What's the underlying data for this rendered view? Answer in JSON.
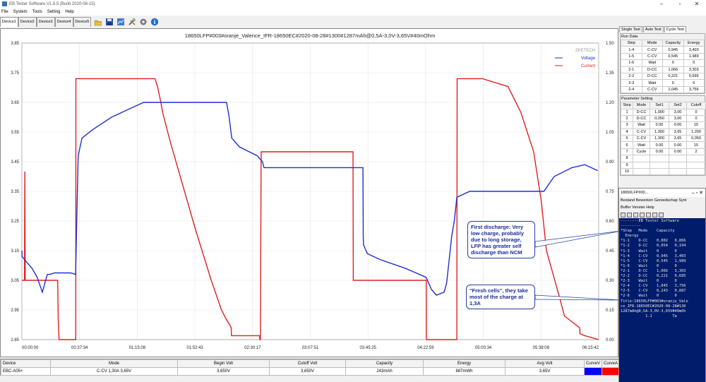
{
  "window": {
    "title": "EB Tester Software V1.8.5 (Build 2020-08-15)",
    "controls": [
      "–",
      "▫",
      "✕"
    ]
  },
  "menu": [
    "File",
    "System",
    "Tools",
    "Setting",
    "Help"
  ],
  "device_tabs": [
    "Device1",
    "Device2",
    "Device3",
    "Device4",
    "Device5"
  ],
  "toolbar_icons": [
    "open-folder-icon",
    "save-icon",
    "chart-export-icon",
    "tools-icon",
    "settings-icon",
    "info-icon"
  ],
  "chart": {
    "title": "18650LFP#003#oranje_Valence_IFR-18650EC#2020-08-28#1300#1287mAh@0,5A-3,0V-3,65V#40mOhm",
    "watermark": "ZKETECH",
    "legend_voltage": "Voltage",
    "legend_current": "Current",
    "voltage_color": "#1f2fd0",
    "current_color": "#e02020"
  },
  "chart_data": {
    "type": "line",
    "title": "18650LFP#003#oranje_Valence_IFR-18650EC#2020-08-28#1300#1287mAh@0,5A-3,0V-3,65V#40mOhm",
    "x_tick_labels": [
      "00:00:00",
      "00:37:34",
      "01:15:08",
      "01:52:43",
      "02:30:17",
      "03:07:51",
      "03:45:25",
      "04:22:59",
      "05:00:34",
      "05:38:08",
      "06:15:42"
    ],
    "x_range_seconds": [
      0,
      22542
    ],
    "y_left_ticks": [
      "3.85",
      "3.75",
      "3.65",
      "3.55",
      "3.45",
      "3.35",
      "3.25",
      "3.15",
      "3.05",
      "2.95",
      "2.85"
    ],
    "y_right_ticks": [
      "1.50",
      "1.35",
      "1.20",
      "1.05",
      "0.90",
      "0.75",
      "0.60",
      "0.45",
      "0.30",
      "0.15",
      "0.00"
    ],
    "ylim_voltage": [
      2.85,
      3.85
    ],
    "ylim_current": [
      0,
      1.5
    ],
    "grid": true,
    "legend_position": "top-right",
    "series": [
      {
        "name": "Voltage",
        "axis": "left",
        "x": [
          0,
          5,
          200,
          400,
          600,
          800,
          960,
          1000,
          1100,
          1280,
          1500,
          1900,
          2100,
          2200,
          2350,
          2800,
          3500,
          4000,
          4500,
          4760,
          4800,
          5500,
          6000,
          6800,
          7500,
          8000,
          8100,
          8200,
          8500,
          9200,
          9400,
          9460,
          9500,
          9700,
          10000,
          11000,
          12000,
          12800,
          13330,
          13340,
          13350,
          13500,
          14000,
          15000,
          15800,
          15900,
          16000,
          16200,
          16500,
          16600,
          16800,
          16900,
          17000,
          17500,
          18000,
          18500,
          19000,
          20000,
          20300,
          20400,
          20800,
          21500,
          22000,
          22500
        ],
        "y": [
          3.15,
          3.13,
          3.11,
          3.09,
          3.06,
          3.01,
          3.06,
          3.07,
          3.07,
          3.075,
          3.075,
          3.075,
          3.07,
          3.47,
          3.53,
          3.56,
          3.6,
          3.62,
          3.64,
          3.65,
          3.65,
          3.65,
          3.65,
          3.65,
          3.65,
          3.65,
          3.6,
          3.53,
          3.5,
          3.47,
          3.45,
          3.43,
          3.43,
          3.43,
          3.43,
          3.43,
          3.43,
          3.43,
          3.43,
          3.2,
          3.17,
          3.14,
          3.12,
          3.09,
          3.06,
          3.04,
          3.02,
          3.0,
          3.01,
          3.04,
          3.2,
          3.25,
          3.33,
          3.35,
          3.35,
          3.35,
          3.35,
          3.35,
          3.35,
          3.35,
          3.4,
          3.43,
          3.44,
          3.42
        ]
      },
      {
        "name": "Current",
        "axis": "right",
        "x": [
          0,
          100,
          115,
          130,
          1400,
          1420,
          1450,
          2100,
          2105,
          2110,
          5200,
          5300,
          5400,
          5500,
          5800,
          6200,
          6800,
          7400,
          7800,
          8000,
          8100,
          8180,
          8190,
          8260,
          9290,
          9300,
          9310,
          9320,
          9350,
          12940,
          12950,
          13340,
          13350,
          15800,
          15805,
          15810,
          17000,
          17010,
          17020,
          18000,
          19000,
          19500,
          20000,
          20300,
          20500,
          21000,
          21200,
          21800,
          21810,
          22000,
          22542
        ],
        "y": [
          0.3,
          0.3,
          0.85,
          0.3,
          0.3,
          0.1,
          0.0,
          0.0,
          0.0,
          1.32,
          1.32,
          1.28,
          1.22,
          1.15,
          1.0,
          0.82,
          0.55,
          0.3,
          0.15,
          0.1,
          0.08,
          0.06,
          0.02,
          0.02,
          0.02,
          0.0,
          0.0,
          0.0,
          0.95,
          0.95,
          0.3,
          0.3,
          0.3,
          0.3,
          0.3,
          0.0,
          0.0,
          1.32,
          1.32,
          1.32,
          1.28,
          1.15,
          0.95,
          0.7,
          0.45,
          0.22,
          0.12,
          0.06,
          0.03,
          0.02,
          0.0
        ]
      }
    ]
  },
  "summary": {
    "headers": [
      "Device",
      "Mode",
      "Begin Volt",
      "Cutoff Volt",
      "Capacity",
      "Energy",
      "Avg Volt",
      "CurveV",
      "CurveA"
    ],
    "values": [
      "EBC-A05+",
      "C-CV 1,30A 3,65V",
      "3,650V",
      "3,650V",
      "243mAh",
      "887mWh",
      "3,65V",
      "",
      ""
    ],
    "curve_v_color": "#0000ff",
    "curve_a_color": "#ff0000"
  },
  "right_panel": {
    "tabs": [
      "Single Test",
      "Auto Test",
      "Cycle Test"
    ],
    "run_data_label": "Run Data",
    "run_headers": [
      "Step",
      "Mode",
      "Capacity",
      "Energy"
    ],
    "run_rows": [
      [
        "1-4",
        "C-CV",
        "0,945",
        "3,403"
      ],
      [
        "1-5",
        "C-CV",
        "0,545",
        "1,989"
      ],
      [
        "1-6",
        "Wait",
        "0",
        "0"
      ],
      [
        "2-1",
        "D-CC",
        "1,066",
        "3,303"
      ],
      [
        "2-2",
        "D-CC",
        "0,221",
        "0,695"
      ],
      [
        "2-3",
        "Wait",
        "0",
        "0"
      ],
      [
        "2-4",
        "C-CV",
        "1,045",
        "3,756"
      ]
    ],
    "param_label": "Parameter Setting",
    "param_headers": [
      "Step",
      "Mode",
      "Set1",
      "Set2",
      "Cutoff"
    ],
    "param_rows": [
      [
        "1",
        "D-CC",
        "1,000",
        "3,00",
        "0"
      ],
      [
        "2",
        "D-CC",
        "0,250",
        "3,00",
        "0"
      ],
      [
        "3",
        "Wait",
        "0.00",
        "0.00",
        "15"
      ],
      [
        "4",
        "C-CV",
        "1,300",
        "3,65",
        "1,200"
      ],
      [
        "5",
        "C-CV",
        "1,300",
        "3,65",
        "0,050"
      ],
      [
        "6",
        "Wait",
        "0.00",
        "0.00",
        "15"
      ],
      [
        "7",
        "Cycle",
        "0.00",
        "0.00",
        "2"
      ],
      [
        "8",
        "",
        "",
        "",
        ""
      ],
      [
        "9",
        "",
        "",
        "",
        ""
      ],
      [
        "10",
        "",
        "",
        "",
        ""
      ]
    ]
  },
  "terminal": {
    "title": "18650LFP#00...",
    "menu_line1": "Bestand  Bewerken  Gereedschap  Synt",
    "menu_line2": "Buffer  Venster  Help",
    "lines": [
      "--------EB Tester Software",
      "---------",
      "*Step   Mode    Capacity",
      "  Energy",
      "*1-1    D-CC    0,802   0,866",
      "*1-2    D-CC    0,054   0,194",
      "*1-3    Wait    0       0",
      "*1-4    C-CV    0,945   3,403",
      "*1-5    C-CV    0,545   1,989",
      "*1-6    Wait    0       0",
      "*2-1    D-CC    1,066   3,303",
      "*2-2    D-CC    0,221   0,695",
      "*2-3    Wait    0       0",
      "*2-4    C-CV    1,045   3,756",
      "*2-5    C-CV    0,243   0,887",
      "*2-6    Wait    0       0",
      "Title:18650LFP#003#oranje_Vale",
      "ce_IFR-18650EC#2020-08-28#130",
      "1287mAh@0,5A-3,0V-3,65V#40mOh",
      "           1.1         Ta"
    ]
  },
  "callouts": [
    {
      "text": "First discharge: Very low charge, probably due to long storage, LFP has greater self discharge than NCM"
    },
    {
      "text": "\"Fresh cells\", they take most of the charge at 1,3A"
    }
  ]
}
